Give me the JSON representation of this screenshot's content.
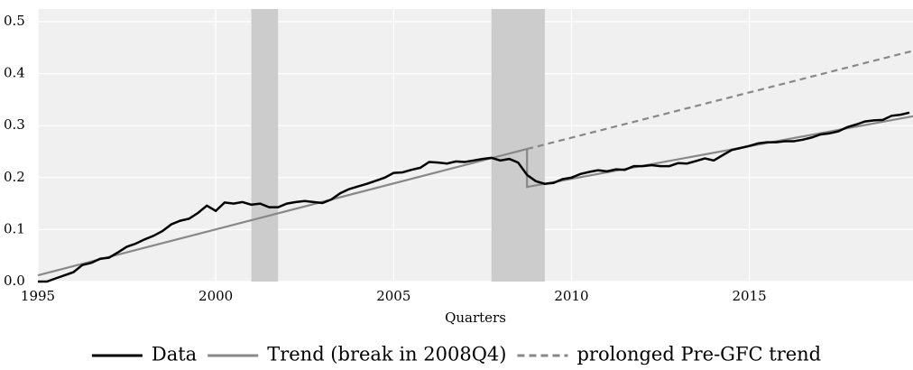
{
  "chart_data": {
    "type": "line",
    "x_label": "Quarters",
    "xlim": [
      1995,
      2019.6
    ],
    "ylim": [
      0,
      0.5
    ],
    "xticks": [
      1995,
      2000,
      2005,
      2010,
      2015
    ],
    "yticks": [
      {
        "value": 0,
        "label": "0.0"
      },
      0.1,
      0.2,
      0.3,
      0.4,
      0.5
    ],
    "grid": true,
    "legend": "bottom",
    "shaded_periods": [
      [
        2001.0,
        2001.75
      ],
      [
        2007.75,
        2009.25
      ]
    ],
    "shade_color": "#cccccc",
    "series": [
      {
        "name": "Data",
        "color": "#000000",
        "style": "solid",
        "x": [
          1995.0,
          1995.25,
          1995.5,
          1995.75,
          1996.0,
          1996.25,
          1996.5,
          1996.75,
          1997.0,
          1997.25,
          1997.5,
          1997.75,
          1998.0,
          1998.25,
          1998.5,
          1998.75,
          1999.0,
          1999.25,
          1999.5,
          1999.75,
          2000.0,
          2000.25,
          2000.5,
          2000.75,
          2001.0,
          2001.25,
          2001.5,
          2001.75,
          2002.0,
          2002.25,
          2002.5,
          2002.75,
          2003.0,
          2003.25,
          2003.5,
          2003.75,
          2004.0,
          2004.25,
          2004.5,
          2004.75,
          2005.0,
          2005.25,
          2005.5,
          2005.75,
          2006.0,
          2006.25,
          2006.5,
          2006.75,
          2007.0,
          2007.25,
          2007.5,
          2007.75,
          2008.0,
          2008.25,
          2008.5,
          2008.75,
          2009.0,
          2009.25,
          2009.5,
          2009.75,
          2010.0,
          2010.25,
          2010.5,
          2010.75,
          2011.0,
          2011.25,
          2011.5,
          2011.75,
          2012.0,
          2012.25,
          2012.5,
          2012.75,
          2013.0,
          2013.25,
          2013.5,
          2013.75,
          2014.0,
          2014.25,
          2014.5,
          2014.75,
          2015.0,
          2015.25,
          2015.5,
          2015.75,
          2016.0,
          2016.25,
          2016.5,
          2016.75,
          2017.0,
          2017.25,
          2017.5,
          2017.75,
          2018.0,
          2018.25,
          2018.5,
          2018.75,
          2019.0,
          2019.25,
          2019.5
        ],
        "values": [
          0.0,
          0.0,
          0.006,
          0.012,
          0.018,
          0.032,
          0.036,
          0.044,
          0.046,
          0.056,
          0.067,
          0.073,
          0.081,
          0.088,
          0.097,
          0.11,
          0.117,
          0.121,
          0.132,
          0.146,
          0.136,
          0.152,
          0.15,
          0.153,
          0.148,
          0.15,
          0.143,
          0.143,
          0.15,
          0.153,
          0.155,
          0.153,
          0.151,
          0.158,
          0.17,
          0.178,
          0.183,
          0.188,
          0.194,
          0.2,
          0.209,
          0.21,
          0.215,
          0.219,
          0.23,
          0.229,
          0.227,
          0.231,
          0.23,
          0.233,
          0.236,
          0.238,
          0.233,
          0.236,
          0.229,
          0.205,
          0.193,
          0.188,
          0.19,
          0.197,
          0.2,
          0.207,
          0.211,
          0.214,
          0.212,
          0.216,
          0.215,
          0.222,
          0.222,
          0.224,
          0.222,
          0.222,
          0.228,
          0.227,
          0.232,
          0.237,
          0.233,
          0.243,
          0.253,
          0.257,
          0.261,
          0.266,
          0.268,
          0.268,
          0.27,
          0.27,
          0.273,
          0.277,
          0.283,
          0.285,
          0.289,
          0.297,
          0.302,
          0.308,
          0.31,
          0.311,
          0.319,
          0.321,
          0.325
        ]
      },
      {
        "name": "Trend (break in 2008Q4)",
        "color": "#888888",
        "style": "solid",
        "x": [
          1995,
          2008.75,
          2008.75,
          2019.6
        ],
        "values": [
          0.012,
          0.255,
          0.182,
          0.318
        ]
      },
      {
        "name": "prolonged Pre-GFC trend",
        "color": "#888888",
        "style": "dashed",
        "x": [
          2008.75,
          2019.6
        ],
        "values": [
          0.255,
          0.444
        ]
      }
    ]
  }
}
